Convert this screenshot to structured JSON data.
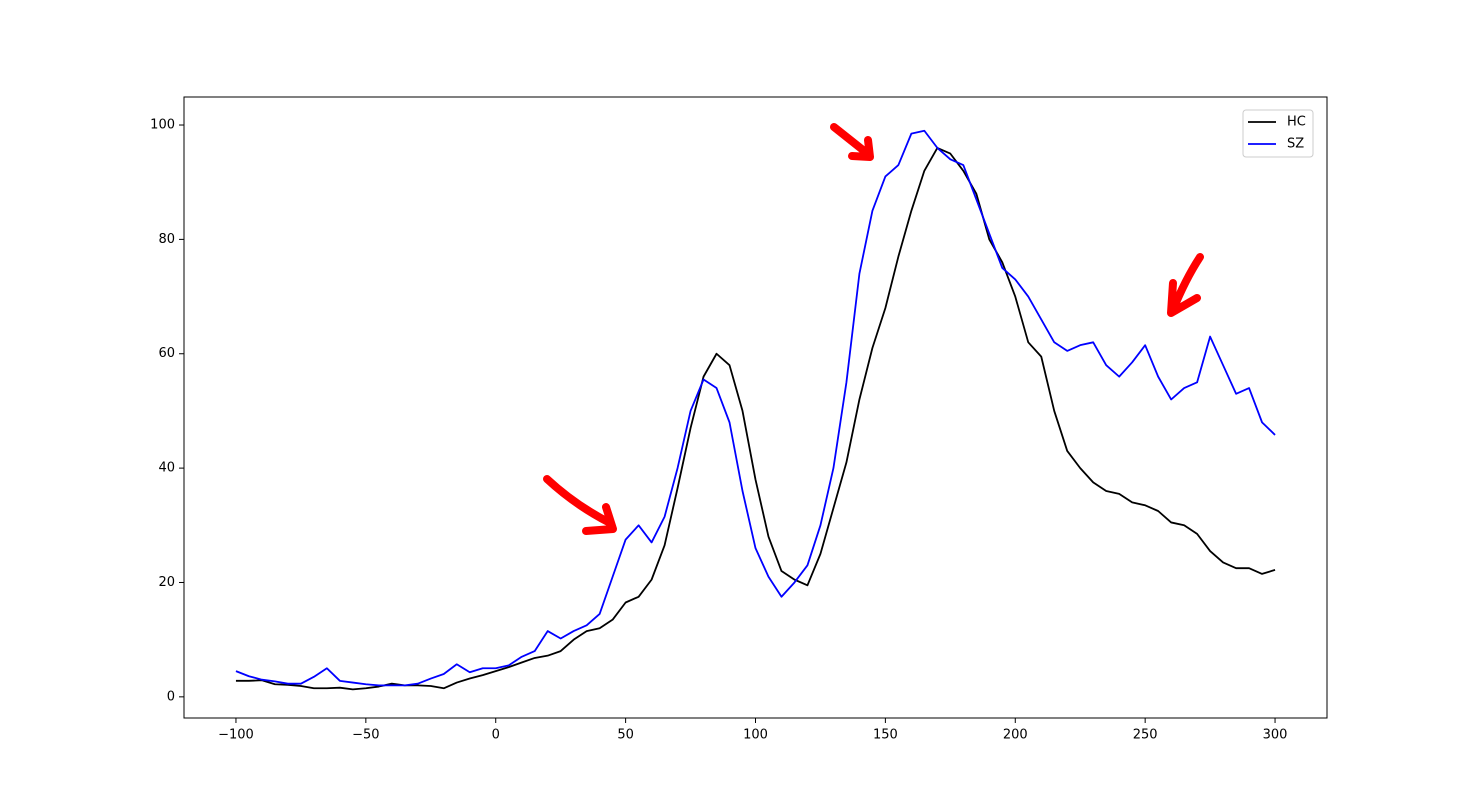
{
  "chart_data": {
    "type": "line",
    "x": [
      -100,
      -95,
      -90,
      -85,
      -80,
      -75,
      -70,
      -65,
      -60,
      -55,
      -50,
      -45,
      -40,
      -35,
      -30,
      -25,
      -20,
      -15,
      -10,
      -5,
      0,
      5,
      10,
      15,
      20,
      25,
      30,
      35,
      40,
      45,
      50,
      55,
      60,
      65,
      70,
      75,
      80,
      85,
      90,
      95,
      100,
      105,
      110,
      115,
      120,
      125,
      130,
      135,
      140,
      145,
      150,
      155,
      160,
      165,
      170,
      175,
      180,
      185,
      190,
      195,
      200,
      205,
      210,
      215,
      220,
      225,
      230,
      235,
      240,
      245,
      250,
      255,
      260,
      265,
      270,
      275,
      280,
      285,
      290,
      295,
      300
    ],
    "series": [
      {
        "name": "HC",
        "color": "#000000",
        "values": [
          2.8,
          2.8,
          2.9,
          2.2,
          2.1,
          1.9,
          1.5,
          1.5,
          1.6,
          1.3,
          1.5,
          1.8,
          2.3,
          2.0,
          2.0,
          1.9,
          1.5,
          2.5,
          3.2,
          3.8,
          4.5,
          5.2,
          6.0,
          6.8,
          7.2,
          8.0,
          10.0,
          11.5,
          12.0,
          13.5,
          16.5,
          17.5,
          20.5,
          26.5,
          36.5,
          47.0,
          56.0,
          60.0,
          58.0,
          50.0,
          38.0,
          28.0,
          22.0,
          20.5,
          19.5,
          25.0,
          33.0,
          41.0,
          52.0,
          61.0,
          68.0,
          77.0,
          85.0,
          92.0,
          96.0,
          95.0,
          92.0,
          88.0,
          80.0,
          76.0,
          70.0,
          62.0,
          59.5,
          50.0,
          43.0,
          40.0,
          37.5,
          36.0,
          35.5,
          34.0,
          33.5,
          32.5,
          30.5,
          30.0,
          28.5,
          25.5,
          23.5,
          22.5,
          22.5,
          21.5,
          22.2
        ]
      },
      {
        "name": "SZ",
        "color": "#0000ff",
        "values": [
          4.5,
          3.6,
          3.0,
          2.7,
          2.3,
          2.3,
          3.5,
          5.0,
          2.8,
          2.5,
          2.2,
          2.0,
          2.0,
          2.0,
          2.3,
          3.2,
          4.0,
          5.7,
          4.3,
          5.0,
          5.0,
          5.5,
          7.0,
          8.0,
          11.5,
          10.2,
          11.5,
          12.5,
          14.5,
          21.0,
          27.5,
          30.0,
          27.0,
          31.5,
          40.0,
          50.0,
          55.5,
          54.0,
          48.0,
          36.0,
          26.0,
          21.0,
          17.5,
          20.0,
          23.0,
          30.0,
          40.0,
          55.0,
          74.0,
          85.0,
          91.0,
          93.0,
          98.5,
          99.0,
          96.0,
          94.0,
          93.0,
          87.0,
          81.0,
          75.0,
          73.0,
          70.0,
          66.0,
          62.0,
          60.5,
          61.5,
          62.0,
          58.0,
          56.0,
          58.5,
          61.5,
          56.0,
          52.0,
          54.0,
          55.0,
          63.0,
          58.0,
          53.0,
          54.0,
          48.0,
          45.8
        ]
      }
    ],
    "xlim": [
      -120,
      320
    ],
    "xticks": [
      {
        "value": -100,
        "label": "−100"
      },
      {
        "value": -50,
        "label": "−50"
      },
      0,
      50,
      100,
      150,
      200,
      250,
      300
    ],
    "ylim": [
      -3.7,
      104.9
    ],
    "yticks": [
      0,
      20,
      40,
      60,
      80,
      100
    ],
    "legend": "upper right"
  }
}
